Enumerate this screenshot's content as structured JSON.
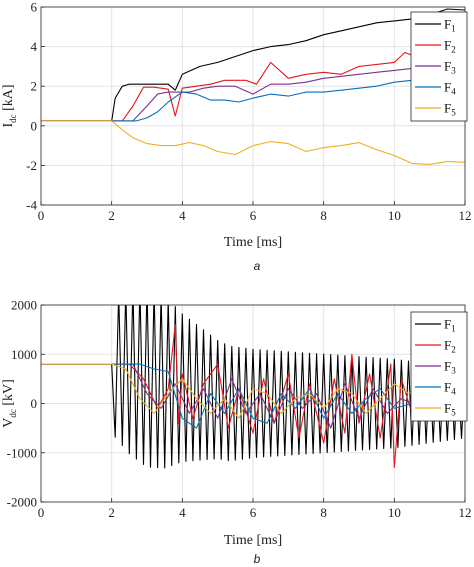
{
  "colors": {
    "F1": "#000000",
    "F2": "#e8161b",
    "F3": "#7e2f8e",
    "F4": "#0072bd",
    "F5": "#edb120"
  },
  "chart_data": [
    {
      "type": "line",
      "caption": "a",
      "xlabel": "Time [ms]",
      "ylabel_main": "I",
      "ylabel_sub": "dc",
      "ylabel_unit": " [kA]",
      "xlim": [
        0,
        12
      ],
      "ylim": [
        -4,
        6
      ],
      "xticks": [
        0,
        2,
        4,
        6,
        8,
        10,
        12
      ],
      "yticks": [
        -4,
        -2,
        0,
        2,
        4,
        6
      ],
      "grid": true,
      "legend_position": "top-right",
      "series": [
        {
          "name": "F",
          "sub": "1",
          "color_key": "F1",
          "x": [
            0,
            2.0,
            2.1,
            2.3,
            2.5,
            2.8,
            3.2,
            3.6,
            3.8,
            4.0,
            4.5,
            5.0,
            5.5,
            6.0,
            6.5,
            7.0,
            7.5,
            8.0,
            8.5,
            9.0,
            9.5,
            10.0,
            10.5,
            11.0,
            11.5,
            12.0
          ],
          "y": [
            0.25,
            0.25,
            1.4,
            2.0,
            2.1,
            2.1,
            2.1,
            2.1,
            1.8,
            2.6,
            3.0,
            3.2,
            3.5,
            3.8,
            4.0,
            4.1,
            4.3,
            4.6,
            4.8,
            5.0,
            5.2,
            5.3,
            5.4,
            5.6,
            5.9,
            5.85
          ]
        },
        {
          "name": "F",
          "sub": "2",
          "color_key": "F2",
          "x": [
            0,
            2.3,
            2.6,
            2.9,
            3.2,
            3.6,
            3.8,
            4.0,
            4.4,
            4.8,
            5.2,
            5.5,
            5.8,
            6.1,
            6.5,
            7.0,
            7.5,
            8.0,
            8.5,
            9.0,
            9.5,
            10.0,
            10.3,
            10.6,
            11.0,
            11.5,
            12.0
          ],
          "y": [
            0.25,
            0.25,
            1.0,
            1.95,
            1.95,
            1.85,
            0.5,
            1.9,
            2.0,
            2.1,
            2.3,
            2.3,
            2.3,
            2.1,
            3.2,
            2.4,
            2.6,
            2.7,
            2.6,
            3.0,
            3.1,
            3.2,
            3.7,
            3.5,
            3.6,
            3.9,
            4.1
          ]
        },
        {
          "name": "F",
          "sub": "3",
          "color_key": "F3",
          "x": [
            0,
            2.6,
            3.0,
            3.3,
            3.6,
            3.9,
            4.2,
            4.6,
            5.0,
            5.5,
            6.0,
            6.5,
            7.0,
            7.5,
            8.0,
            8.5,
            9.0,
            9.5,
            10.0,
            10.5,
            11.0,
            11.5,
            12.0
          ],
          "y": [
            0.25,
            0.25,
            1.0,
            1.6,
            1.7,
            1.7,
            1.7,
            1.9,
            2.0,
            2.0,
            1.6,
            2.1,
            2.1,
            2.2,
            2.4,
            2.5,
            2.6,
            2.7,
            2.8,
            2.9,
            3.0,
            3.1,
            3.2
          ]
        },
        {
          "name": "F",
          "sub": "4",
          "color_key": "F4",
          "x": [
            0,
            2.7,
            3.0,
            3.3,
            3.6,
            4.0,
            4.4,
            4.8,
            5.2,
            5.6,
            6.0,
            6.5,
            7.0,
            7.5,
            8.0,
            8.5,
            9.0,
            9.5,
            10.0,
            10.5,
            11.0,
            11.5,
            12.0
          ],
          "y": [
            0.25,
            0.25,
            0.4,
            0.7,
            1.2,
            1.7,
            1.6,
            1.3,
            1.3,
            1.2,
            1.4,
            1.6,
            1.5,
            1.7,
            1.7,
            1.8,
            1.9,
            2.0,
            2.2,
            2.3,
            2.3,
            2.4,
            2.5
          ]
        },
        {
          "name": "F",
          "sub": "5",
          "color_key": "F5",
          "x": [
            0,
            2.0,
            2.3,
            2.6,
            3.0,
            3.4,
            3.8,
            4.2,
            4.6,
            5.0,
            5.5,
            6.0,
            6.5,
            7.0,
            7.5,
            8.0,
            8.5,
            9.0,
            9.5,
            10.0,
            10.5,
            11.0,
            11.5,
            12.0
          ],
          "y": [
            0.25,
            0.25,
            -0.2,
            -0.6,
            -0.9,
            -1.0,
            -1.0,
            -0.85,
            -1.0,
            -1.3,
            -1.45,
            -1.0,
            -0.8,
            -0.9,
            -1.3,
            -1.1,
            -1.0,
            -0.85,
            -1.2,
            -1.5,
            -1.9,
            -1.95,
            -1.8,
            -1.85
          ]
        }
      ]
    },
    {
      "type": "line",
      "caption": "b",
      "xlabel": "Time [ms]",
      "ylabel_main": "V",
      "ylabel_sub": "dc",
      "ylabel_unit": " [kV]",
      "xlim": [
        0,
        12
      ],
      "ylim": [
        -2000,
        2000
      ],
      "xticks": [
        0,
        2,
        4,
        6,
        8,
        10,
        12
      ],
      "yticks": [
        -2000,
        -1000,
        0,
        1000,
        2000
      ],
      "grid": true,
      "legend_position": "top-right",
      "series": [
        {
          "name": "F",
          "sub": "1",
          "color_key": "F1",
          "oscillation": {
            "start": 2.0,
            "baseline": 800,
            "center_start": 800,
            "center_end": 0,
            "period": 0.2,
            "envelope_x": [
              2.0,
              2.5,
              3.0,
              3.5,
              4.0,
              5.0,
              6.0,
              7.0,
              8.0,
              9.0,
              10.0,
              11.0,
              12.0
            ],
            "envelope_amp": [
              1400,
              1700,
              1850,
              1750,
              1500,
              1200,
              1100,
              1050,
              1000,
              950,
              900,
              800,
              700
            ]
          }
        },
        {
          "name": "F",
          "sub": "2",
          "color_key": "F2",
          "x": [
            0,
            2.5,
            2.9,
            3.3,
            3.6,
            3.8,
            3.9,
            4.0,
            4.3,
            4.6,
            5.0,
            5.3,
            5.6,
            6.0,
            6.3,
            6.6,
            7.0,
            7.3,
            7.6,
            8.0,
            8.3,
            8.6,
            8.8,
            9.0,
            9.3,
            9.6,
            9.9,
            10.0,
            10.2,
            10.5,
            10.8,
            11.0,
            11.5,
            12.0
          ],
          "y": [
            800,
            800,
            500,
            -100,
            300,
            1600,
            -400,
            600,
            -300,
            400,
            800,
            -500,
            300,
            -600,
            500,
            -400,
            600,
            -700,
            400,
            -800,
            500,
            -600,
            1000,
            -400,
            600,
            -700,
            800,
            -1300,
            500,
            -200,
            300,
            -300,
            200,
            0
          ]
        },
        {
          "name": "F",
          "sub": "3",
          "color_key": "F3",
          "x": [
            0,
            2.6,
            3.0,
            3.4,
            3.8,
            4.2,
            4.6,
            5.0,
            5.4,
            5.8,
            6.2,
            6.6,
            7.0,
            7.4,
            7.8,
            8.2,
            8.6,
            9.0,
            9.4,
            9.8,
            10.2,
            10.5
          ],
          "y": [
            800,
            800,
            200,
            -100,
            400,
            -200,
            300,
            -300,
            500,
            -200,
            200,
            -400,
            300,
            -100,
            200,
            -500,
            400,
            -300,
            300,
            -200,
            100,
            0
          ]
        },
        {
          "name": "F",
          "sub": "4",
          "color_key": "F4",
          "x": [
            0,
            2.8,
            3.2,
            3.6,
            4.0,
            4.4,
            4.8,
            5.2,
            5.6,
            6.0,
            6.4,
            6.8,
            7.2,
            7.6,
            8.0,
            8.4,
            8.8,
            9.2,
            9.6,
            10.0,
            10.5
          ],
          "y": [
            800,
            800,
            700,
            650,
            -300,
            -500,
            200,
            -200,
            300,
            -300,
            -400,
            200,
            -100,
            300,
            -300,
            200,
            -200,
            100,
            300,
            -100,
            0
          ]
        },
        {
          "name": "F",
          "sub": "5",
          "color_key": "F5",
          "x": [
            0,
            2.0,
            2.4,
            2.8,
            3.2,
            3.6,
            4.0,
            4.4,
            4.8,
            5.2,
            5.6,
            6.0,
            6.4,
            6.8,
            7.2,
            7.6,
            8.0,
            8.4,
            8.8,
            9.2,
            9.6,
            10.0,
            10.4,
            10.8,
            11.2,
            11.6,
            12.0
          ],
          "y": [
            800,
            800,
            700,
            100,
            -200,
            200,
            500,
            100,
            -200,
            100,
            -300,
            300,
            200,
            -200,
            100,
            200,
            -100,
            300,
            200,
            -200,
            100,
            400,
            200,
            300,
            100,
            200,
            100
          ]
        }
      ]
    }
  ]
}
